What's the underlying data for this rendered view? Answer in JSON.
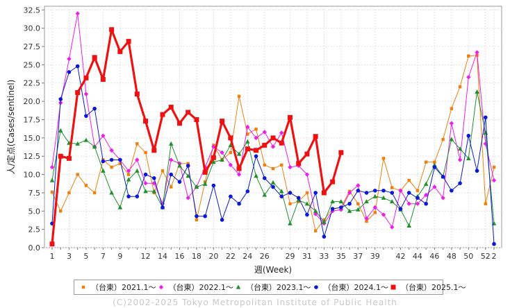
{
  "chart_data": {
    "type": "line",
    "xlabel": "週(Week)",
    "ylabel": "人/定点(Cases/sentinel)",
    "xlim": [
      0,
      53
    ],
    "ylim": [
      0,
      33
    ],
    "yticks": [
      "0.0",
      "2.5",
      "5.0",
      "7.5",
      "10.0",
      "12.5",
      "15.0",
      "17.5",
      "20.0",
      "22.5",
      "25.0",
      "27.5",
      "30.0",
      "32.5"
    ],
    "xticks": [
      "1",
      "3",
      "5",
      "7",
      "9",
      "12",
      "14",
      "16",
      "18",
      "20",
      "22",
      "24",
      "26",
      "29",
      "31",
      "33",
      "35",
      "37",
      "39",
      "42",
      "44",
      "46",
      "48",
      "50",
      "52",
      "2"
    ],
    "grid": true,
    "legend_position": "bottom",
    "series": [
      {
        "name": "（台東）2021.1～",
        "color": "#f07f0e",
        "marker": "square-small",
        "points": [
          [
            1,
            7.6
          ],
          [
            2,
            5.0
          ],
          [
            3,
            7.5
          ],
          [
            4,
            10.0
          ],
          [
            5,
            8.5
          ],
          [
            6,
            7.5
          ],
          [
            7,
            12.0
          ],
          [
            8,
            11.0
          ],
          [
            9,
            11.5
          ],
          [
            10,
            10.0
          ],
          [
            11,
            14.2
          ],
          [
            12,
            13.0
          ],
          [
            13,
            7.5
          ],
          [
            14,
            10.5
          ],
          [
            15,
            8.3
          ],
          [
            16,
            11.5
          ],
          [
            17,
            11.5
          ],
          [
            18,
            3.8
          ],
          [
            19,
            9.0
          ],
          [
            20,
            14.0
          ],
          [
            21,
            12.0
          ],
          [
            22,
            13.0
          ],
          [
            23,
            20.7
          ],
          [
            24,
            15.5
          ],
          [
            25,
            16.2
          ],
          [
            26,
            11.3
          ],
          [
            27,
            10.8
          ],
          [
            28,
            11.3
          ],
          [
            29,
            6.0
          ],
          [
            30,
            6.3
          ],
          [
            31,
            7.5
          ],
          [
            32,
            2.3
          ],
          [
            33,
            3.8
          ],
          [
            34,
            5.3
          ],
          [
            35,
            5.5
          ],
          [
            36,
            7.7
          ],
          [
            37,
            6.0
          ],
          [
            38,
            3.6
          ],
          [
            39,
            4.8
          ],
          [
            40,
            12.2
          ],
          [
            41,
            8.2
          ],
          [
            42,
            7.8
          ],
          [
            43,
            9.2
          ],
          [
            44,
            7.8
          ],
          [
            45,
            11.7
          ],
          [
            46,
            11.7
          ],
          [
            47,
            14.8
          ],
          [
            48,
            19.0
          ],
          [
            49,
            22.0
          ],
          [
            50,
            26.2
          ],
          [
            51,
            26.3
          ],
          [
            52,
            6.0
          ],
          [
            53,
            11.0
          ]
        ]
      },
      {
        "name": "（台東）2022.1～",
        "color": "#ee1ee8",
        "marker": "diamond",
        "points": [
          [
            1,
            11.0
          ],
          [
            2,
            19.8
          ],
          [
            3,
            25.8
          ],
          [
            4,
            32.0
          ],
          [
            5,
            21.0
          ],
          [
            6,
            13.8
          ],
          [
            7,
            15.3
          ],
          [
            8,
            13.3
          ],
          [
            9,
            12.0
          ],
          [
            10,
            10.5
          ],
          [
            11,
            12.0
          ],
          [
            12,
            8.8
          ],
          [
            13,
            8.8
          ],
          [
            14,
            6.0
          ],
          [
            15,
            12.0
          ],
          [
            16,
            11.5
          ],
          [
            17,
            6.8
          ],
          [
            18,
            8.3
          ],
          [
            19,
            11.0
          ],
          [
            20,
            13.8
          ],
          [
            21,
            13.0
          ],
          [
            22,
            11.3
          ],
          [
            23,
            10.0
          ],
          [
            24,
            16.5
          ],
          [
            25,
            15.0
          ],
          [
            26,
            15.8
          ],
          [
            27,
            13.8
          ],
          [
            28,
            15.7
          ],
          [
            29,
            11.0
          ],
          [
            30,
            11.2
          ],
          [
            31,
            10.0
          ],
          [
            32,
            4.6
          ],
          [
            33,
            3.3
          ],
          [
            34,
            5.0
          ],
          [
            35,
            5.2
          ],
          [
            36,
            7.5
          ],
          [
            37,
            8.5
          ],
          [
            38,
            4.0
          ],
          [
            39,
            5.5
          ],
          [
            40,
            4.5
          ],
          [
            41,
            2.8
          ],
          [
            42,
            7.8
          ],
          [
            43,
            6.0
          ],
          [
            44,
            6.0
          ],
          [
            45,
            7.2
          ],
          [
            46,
            8.3
          ],
          [
            47,
            6.8
          ],
          [
            48,
            17.0
          ],
          [
            49,
            12.0
          ],
          [
            50,
            23.3
          ],
          [
            51,
            26.7
          ],
          [
            52,
            14.2
          ],
          [
            53,
            9.2
          ]
        ]
      },
      {
        "name": "（台東）2023.1～",
        "color": "#1f8f2a",
        "marker": "triangle",
        "points": [
          [
            1,
            9.2
          ],
          [
            2,
            16.0
          ],
          [
            3,
            14.3
          ],
          [
            4,
            14.2
          ],
          [
            5,
            14.7
          ],
          [
            6,
            13.8
          ],
          [
            7,
            10.5
          ],
          [
            8,
            7.5
          ],
          [
            9,
            5.5
          ],
          [
            10,
            9.3
          ],
          [
            11,
            10.5
          ],
          [
            12,
            7.7
          ],
          [
            13,
            7.7
          ],
          [
            14,
            5.5
          ],
          [
            15,
            14.2
          ],
          [
            16,
            11.2
          ],
          [
            17,
            9.8
          ],
          [
            18,
            8.3
          ],
          [
            19,
            8.7
          ],
          [
            20,
            11.7
          ],
          [
            21,
            12.0
          ],
          [
            22,
            14.0
          ],
          [
            23,
            12.8
          ],
          [
            24,
            14.5
          ],
          [
            25,
            9.8
          ],
          [
            26,
            7.2
          ],
          [
            27,
            8.9
          ],
          [
            28,
            7.7
          ],
          [
            29,
            3.3
          ],
          [
            30,
            6.5
          ],
          [
            31,
            6.0
          ],
          [
            32,
            5.0
          ],
          [
            33,
            3.5
          ],
          [
            34,
            6.3
          ],
          [
            35,
            6.3
          ],
          [
            36,
            5.0
          ],
          [
            37,
            5.2
          ],
          [
            38,
            6.3
          ],
          [
            39,
            7.0
          ],
          [
            40,
            6.8
          ],
          [
            41,
            6.3
          ],
          [
            42,
            5.2
          ],
          [
            43,
            3.0
          ],
          [
            44,
            7.0
          ],
          [
            45,
            8.7
          ],
          [
            46,
            11.3
          ],
          [
            47,
            9.7
          ],
          [
            48,
            14.8
          ],
          [
            49,
            13.5
          ],
          [
            50,
            12.2
          ],
          [
            51,
            21.3
          ],
          [
            52,
            15.7
          ],
          [
            53,
            3.3
          ]
        ]
      },
      {
        "name": "（台東）2024.1～",
        "color": "#0a17d6",
        "marker": "circle",
        "points": [
          [
            1,
            3.3
          ],
          [
            2,
            20.3
          ],
          [
            3,
            24.0
          ],
          [
            4,
            24.8
          ],
          [
            5,
            18.0
          ],
          [
            6,
            19.0
          ],
          [
            7,
            11.8
          ],
          [
            8,
            12.0
          ],
          [
            9,
            12.0
          ],
          [
            10,
            7.0
          ],
          [
            11,
            7.0
          ],
          [
            12,
            10.0
          ],
          [
            13,
            9.5
          ],
          [
            14,
            5.5
          ],
          [
            15,
            10.0
          ],
          [
            16,
            9.0
          ],
          [
            17,
            11.2
          ],
          [
            18,
            4.3
          ],
          [
            19,
            4.3
          ],
          [
            20,
            8.5
          ],
          [
            21,
            3.8
          ],
          [
            22,
            7.0
          ],
          [
            23,
            6.0
          ],
          [
            24,
            7.7
          ],
          [
            25,
            12.5
          ],
          [
            26,
            9.5
          ],
          [
            27,
            8.3
          ],
          [
            28,
            7.0
          ],
          [
            29,
            7.5
          ],
          [
            30,
            6.8
          ],
          [
            31,
            4.5
          ],
          [
            32,
            7.5
          ],
          [
            33,
            1.5
          ],
          [
            34,
            5.3
          ],
          [
            35,
            5.5
          ],
          [
            36,
            6.0
          ],
          [
            37,
            7.8
          ],
          [
            38,
            7.5
          ],
          [
            39,
            7.8
          ],
          [
            40,
            7.8
          ],
          [
            41,
            7.5
          ],
          [
            42,
            5.3
          ],
          [
            43,
            7.5
          ],
          [
            44,
            6.8
          ],
          [
            45,
            6.0
          ],
          [
            46,
            11.0
          ],
          [
            47,
            9.7
          ],
          [
            48,
            7.8
          ],
          [
            49,
            8.8
          ],
          [
            50,
            15.3
          ],
          [
            51,
            10.5
          ],
          [
            52,
            17.8
          ],
          [
            53,
            0.5
          ]
        ]
      },
      {
        "name": "（台東）2025.1～",
        "color": "#ee1111",
        "marker": "square",
        "bold": true,
        "points": [
          [
            1,
            0.5
          ],
          [
            2,
            12.5
          ],
          [
            3,
            12.2
          ],
          [
            4,
            21.2
          ],
          [
            5,
            23.2
          ],
          [
            6,
            26.0
          ],
          [
            7,
            23.0
          ],
          [
            8,
            29.8
          ],
          [
            9,
            26.8
          ],
          [
            10,
            28.2
          ],
          [
            11,
            21.0
          ],
          [
            12,
            17.3
          ],
          [
            13,
            13.3
          ],
          [
            14,
            18.2
          ],
          [
            15,
            19.2
          ],
          [
            16,
            17.0
          ],
          [
            17,
            18.5
          ],
          [
            18,
            17.5
          ],
          [
            19,
            10.3
          ],
          [
            20,
            12.3
          ],
          [
            21,
            17.3
          ],
          [
            22,
            15.0
          ],
          [
            23,
            10.8
          ],
          [
            24,
            13.5
          ],
          [
            25,
            13.3
          ],
          [
            26,
            14.0
          ],
          [
            27,
            15.0
          ],
          [
            28,
            14.3
          ],
          [
            29,
            17.8
          ],
          [
            30,
            11.5
          ],
          [
            31,
            12.8
          ],
          [
            32,
            15.2
          ],
          [
            33,
            7.5
          ],
          [
            34,
            9.0
          ],
          [
            35,
            13.0
          ]
        ]
      }
    ]
  },
  "copyright": "(C)2002-2025 Tokyo Metropolitan Institute of Public Health"
}
